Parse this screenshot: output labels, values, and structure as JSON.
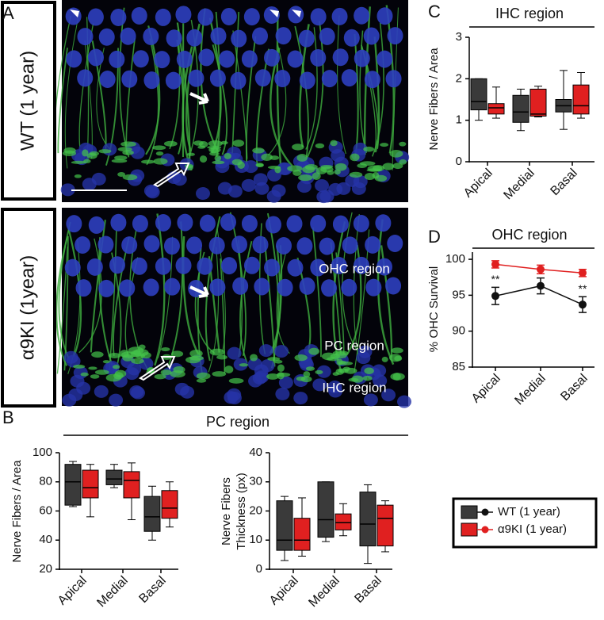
{
  "panel_labels": [
    "A",
    "B",
    "C",
    "D"
  ],
  "image_labels": [
    "WT (1 year)",
    "α9KI (1year)"
  ],
  "region_labels": [
    "OHC region",
    "PC region",
    "IHC region"
  ],
  "chart_data": [
    {
      "type": "box",
      "title": "IHC region",
      "ylabel": "Nerve Fibers / Area",
      "categories": [
        "Apical",
        "Medial",
        "Basal"
      ],
      "ylim": [
        0,
        3
      ],
      "yticks": [
        0,
        1,
        2,
        3
      ],
      "series": [
        {
          "name": "WT (1 year)",
          "color": "#3a3a3a",
          "values": [
            {
              "min": 1.0,
              "q1": 1.25,
              "median": 1.45,
              "q3": 2.0,
              "max": 2.0
            },
            {
              "min": 0.75,
              "q1": 0.95,
              "median": 1.2,
              "q3": 1.6,
              "max": 1.75
            },
            {
              "min": 0.78,
              "q1": 1.2,
              "median": 1.35,
              "q3": 1.5,
              "max": 2.2
            }
          ]
        },
        {
          "name": "α9KI (1 year)",
          "color": "#e02020",
          "values": [
            {
              "min": 1.05,
              "q1": 1.15,
              "median": 1.3,
              "q3": 1.4,
              "max": 1.8
            },
            {
              "min": 1.08,
              "q1": 1.1,
              "median": 1.15,
              "q3": 1.75,
              "max": 1.82
            },
            {
              "min": 1.05,
              "q1": 1.15,
              "median": 1.35,
              "q3": 1.85,
              "max": 2.15
            }
          ]
        }
      ]
    },
    {
      "type": "line",
      "title": "OHC region",
      "ylabel": "% OHC Survival",
      "categories": [
        "Apical",
        "Medial",
        "Basal"
      ],
      "ylim": [
        85,
        101
      ],
      "yticks": [
        85,
        90,
        95,
        100
      ],
      "series": [
        {
          "name": "WT (1 year)",
          "color": "#111111",
          "values": [
            94.9,
            96.3,
            93.7
          ],
          "errors": [
            1.2,
            1.1,
            1.1
          ]
        },
        {
          "name": "α9KI (1 year)",
          "color": "#e02020",
          "values": [
            99.3,
            98.6,
            98.1
          ],
          "errors": [
            0.5,
            0.6,
            0.5
          ]
        }
      ],
      "annotations": [
        {
          "text": "**",
          "x": "Apical"
        },
        {
          "text": "**",
          "x": "Basal"
        }
      ]
    },
    {
      "type": "box",
      "title": "PC region",
      "ylabel": "Nerve Fibers / Area",
      "categories": [
        "Apical",
        "Medial",
        "Basal"
      ],
      "ylim": [
        20,
        100
      ],
      "yticks": [
        20,
        40,
        60,
        80,
        100
      ],
      "series": [
        {
          "name": "WT (1 year)",
          "color": "#3a3a3a",
          "values": [
            {
              "min": 63,
              "q1": 64,
              "median": 80,
              "q3": 92,
              "max": 94
            },
            {
              "min": 76,
              "q1": 78,
              "median": 82,
              "q3": 88,
              "max": 92
            },
            {
              "min": 40,
              "q1": 46,
              "median": 56,
              "q3": 70,
              "max": 77
            }
          ]
        },
        {
          "name": "α9KI (1 year)",
          "color": "#e02020",
          "values": [
            {
              "min": 56,
              "q1": 69,
              "median": 76,
              "q3": 88,
              "max": 92
            },
            {
              "min": 54,
              "q1": 69,
              "median": 81,
              "q3": 87,
              "max": 93
            },
            {
              "min": 49,
              "q1": 55,
              "median": 62,
              "q3": 74,
              "max": 80
            }
          ]
        }
      ]
    },
    {
      "type": "box",
      "ylabel": [
        "Nerve Fibers",
        "Thickness (px)"
      ],
      "categories": [
        "Apical",
        "Medial",
        "Basal"
      ],
      "ylim": [
        0,
        40
      ],
      "yticks": [
        0,
        10,
        20,
        30,
        40
      ],
      "series": [
        {
          "name": "WT (1 year)",
          "color": "#3a3a3a",
          "values": [
            {
              "min": 3,
              "q1": 6.5,
              "median": 10,
              "q3": 23.5,
              "max": 25
            },
            {
              "min": 9.5,
              "q1": 11,
              "median": 17,
              "q3": 30,
              "max": 30
            },
            {
              "min": 2,
              "q1": 8,
              "median": 15.5,
              "q3": 26.5,
              "max": 29
            }
          ]
        },
        {
          "name": "α9KI (1 year)",
          "color": "#e02020",
          "values": [
            {
              "min": 4.5,
              "q1": 6.5,
              "median": 10,
              "q3": 17.5,
              "max": 24.5
            },
            {
              "min": 11.5,
              "q1": 13.5,
              "median": 16,
              "q3": 19,
              "max": 22.5
            },
            {
              "min": 6,
              "q1": 8,
              "median": 17.5,
              "q3": 22,
              "max": 23.5
            }
          ]
        }
      ]
    }
  ]
}
